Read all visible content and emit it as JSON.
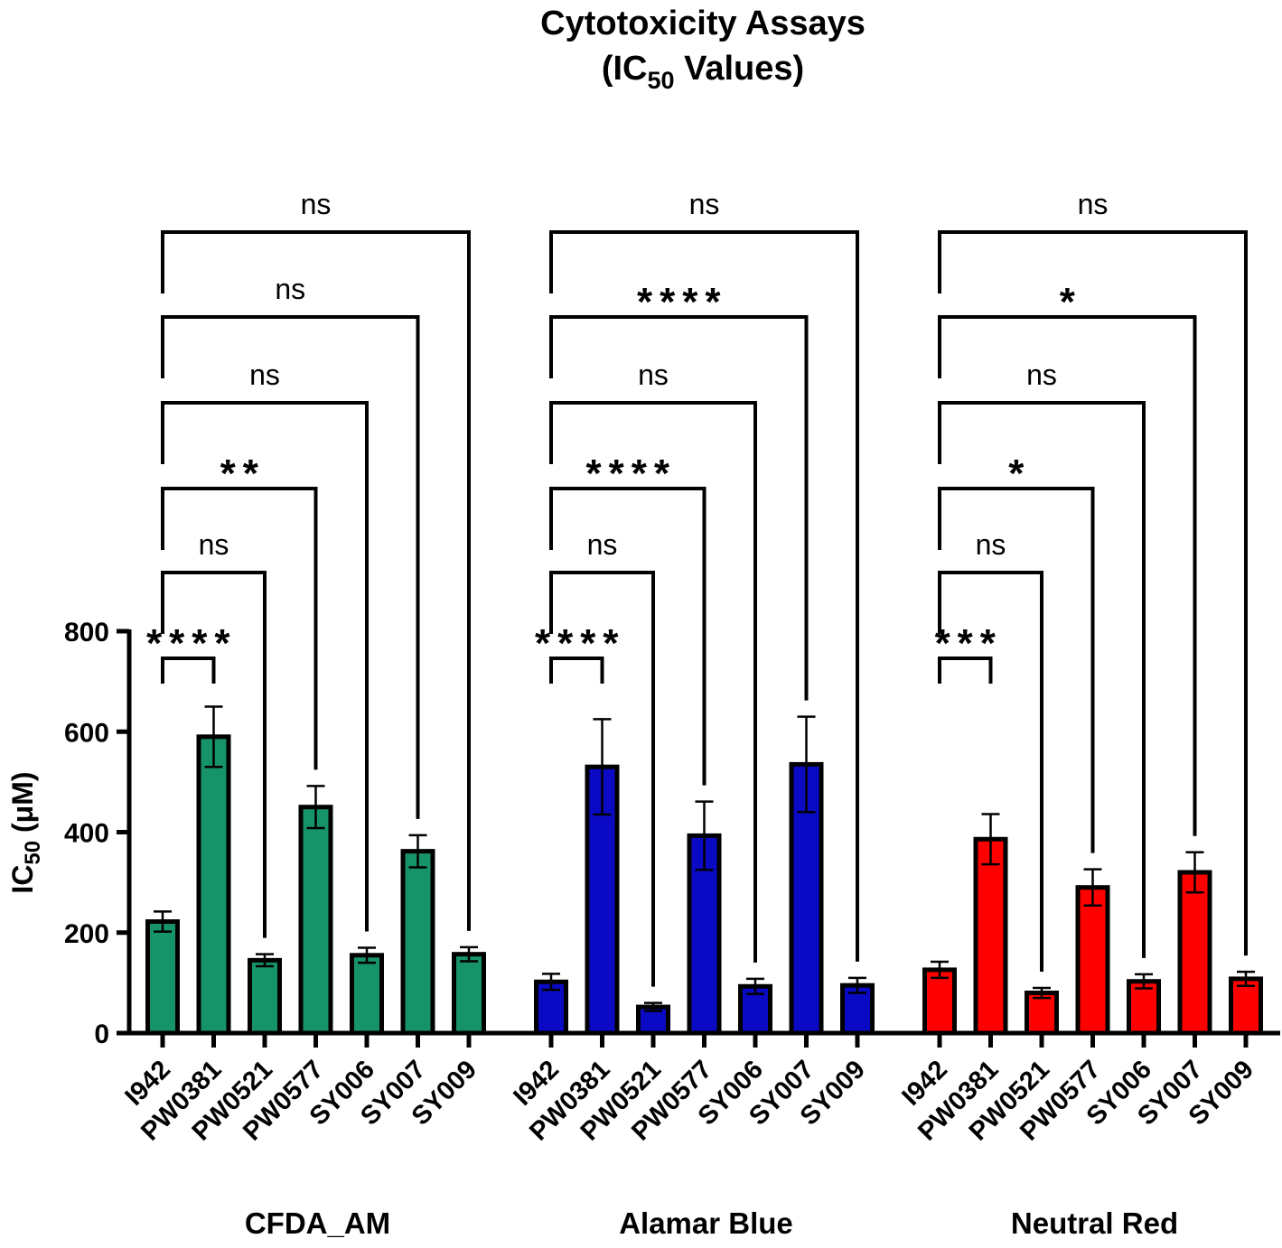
{
  "chart_data": {
    "type": "bar",
    "title_line1": "Cytotoxicity Assays",
    "title_line2_prefix": "(IC",
    "title_line2_sub": "50",
    "title_line2_suffix": " Values)",
    "ylabel_prefix": "IC",
    "ylabel_sub": "50",
    "ylabel_suffix": " (μM)",
    "ylim": [
      0,
      800
    ],
    "yticks": [
      0,
      200,
      400,
      600,
      800
    ],
    "categories": [
      "I942",
      "PW0381",
      "PW0521",
      "PW0577",
      "SY006",
      "SY007",
      "SY009"
    ],
    "groups": [
      {
        "name": "CFDA_AM",
        "color": "#17936a",
        "values": [
          222,
          590,
          145,
          450,
          155,
          362,
          157
        ],
        "errors": [
          20,
          60,
          12,
          42,
          15,
          32,
          14
        ],
        "comparisons": [
          {
            "vs": "PW0381",
            "label": "****"
          },
          {
            "vs": "PW0521",
            "label": "ns"
          },
          {
            "vs": "PW0577",
            "label": "**"
          },
          {
            "vs": "SY006",
            "label": "ns"
          },
          {
            "vs": "SY007",
            "label": "ns"
          },
          {
            "vs": "SY009",
            "label": "ns"
          }
        ]
      },
      {
        "name": "Alamar Blue",
        "color": "#0a0ac4",
        "values": [
          102,
          530,
          52,
          393,
          93,
          535,
          95
        ],
        "errors": [
          16,
          95,
          8,
          68,
          15,
          95,
          15
        ],
        "comparisons": [
          {
            "vs": "PW0381",
            "label": "****"
          },
          {
            "vs": "PW0521",
            "label": "ns"
          },
          {
            "vs": "PW0577",
            "label": "****"
          },
          {
            "vs": "SY006",
            "label": "ns"
          },
          {
            "vs": "SY007",
            "label": "****"
          },
          {
            "vs": "SY009",
            "label": "ns"
          }
        ]
      },
      {
        "name": "Neutral Red",
        "color": "#ff0000",
        "values": [
          126,
          386,
          80,
          290,
          103,
          320,
          108
        ],
        "errors": [
          16,
          50,
          10,
          36,
          14,
          40,
          14
        ],
        "comparisons": [
          {
            "vs": "PW0381",
            "label": "***"
          },
          {
            "vs": "PW0521",
            "label": "ns"
          },
          {
            "vs": "PW0577",
            "label": "*"
          },
          {
            "vs": "SY006",
            "label": "ns"
          },
          {
            "vs": "SY007",
            "label": "*"
          },
          {
            "vs": "SY009",
            "label": "ns"
          }
        ]
      }
    ],
    "reference_category": "I942"
  }
}
